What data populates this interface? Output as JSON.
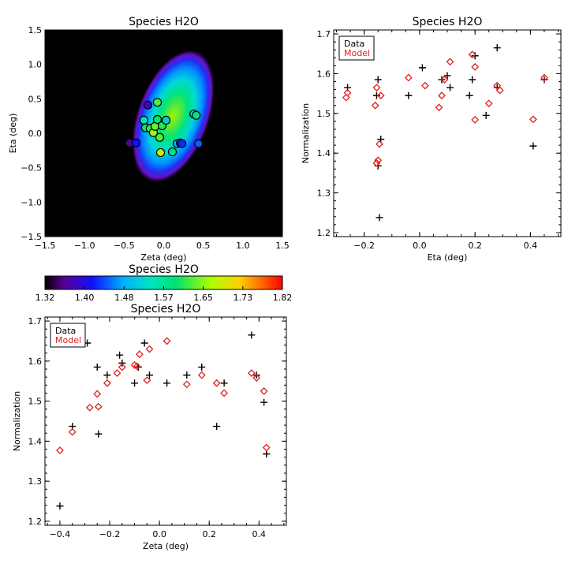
{
  "chart_data": [
    {
      "type": "heatmap",
      "title": "Species H2O",
      "xlabel": "Zeta (deg)",
      "ylabel": "Eta (deg)",
      "xlim": [
        -1.5,
        1.5
      ],
      "ylim": [
        -1.5,
        1.5
      ],
      "xticks": [
        "−1.5",
        "−1.0",
        "−0.5",
        "0.0",
        "0.5",
        "1.0",
        "1.5"
      ],
      "yticks": [
        "−1.5",
        "−1.0",
        "−0.5",
        "0.0",
        "0.5",
        "1.0",
        "1.5"
      ],
      "ellipse": {
        "center": [
          0.12,
          0.25
        ],
        "semi_major": 1.0,
        "semi_minor": 0.45,
        "tilt_deg": 20
      },
      "points": [
        {
          "x": -0.43,
          "y": -0.14,
          "v": 1.37
        },
        {
          "x": -0.35,
          "y": -0.14,
          "v": 1.42
        },
        {
          "x": -0.25,
          "y": 0.19,
          "v": 1.55
        },
        {
          "x": -0.23,
          "y": 0.08,
          "v": 1.6
        },
        {
          "x": -0.2,
          "y": 0.41,
          "v": 1.38
        },
        {
          "x": -0.17,
          "y": 0.07,
          "v": 1.62
        },
        {
          "x": -0.13,
          "y": 0.01,
          "v": 1.66
        },
        {
          "x": -0.11,
          "y": 0.1,
          "v": 1.64
        },
        {
          "x": -0.08,
          "y": 0.2,
          "v": 1.6
        },
        {
          "x": -0.08,
          "y": 0.45,
          "v": 1.63
        },
        {
          "x": -0.05,
          "y": -0.06,
          "v": 1.63
        },
        {
          "x": -0.04,
          "y": -0.28,
          "v": 1.7
        },
        {
          "x": -0.02,
          "y": 0.11,
          "v": 1.61
        },
        {
          "x": 0.03,
          "y": 0.19,
          "v": 1.52
        },
        {
          "x": 0.11,
          "y": -0.27,
          "v": 1.58
        },
        {
          "x": 0.17,
          "y": -0.15,
          "v": 1.49
        },
        {
          "x": 0.21,
          "y": -0.14,
          "v": 1.45
        },
        {
          "x": 0.23,
          "y": -0.15,
          "v": 1.43
        },
        {
          "x": 0.38,
          "y": 0.28,
          "v": 1.59
        },
        {
          "x": 0.41,
          "y": 0.26,
          "v": 1.58
        },
        {
          "x": 0.44,
          "y": -0.15,
          "v": 1.45
        }
      ]
    },
    {
      "type": "scatter",
      "title": "Species H2O",
      "xlabel": "Eta (deg)",
      "ylabel": "Normalization",
      "xlim": [
        -0.31,
        0.51
      ],
      "ylim": [
        1.19,
        1.71
      ],
      "xticks": [
        -0.2,
        0.0,
        0.2,
        0.4
      ],
      "xtick_labels": [
        "−0.2",
        "0.0",
        "0.2",
        "0.4"
      ],
      "yticks": [
        1.2,
        1.3,
        1.4,
        1.5,
        1.6,
        1.7
      ],
      "ytick_labels": [
        "1.2",
        "1.3",
        "1.4",
        "1.5",
        "1.6",
        "1.7"
      ],
      "legend": [
        "Data",
        "Model"
      ],
      "legend_position": "top-left",
      "series": [
        {
          "name": "Data",
          "marker": "plus",
          "color": "#000000",
          "x": [
            -0.26,
            -0.15,
            -0.155,
            -0.15,
            -0.145,
            -0.14,
            -0.04,
            0.01,
            0.08,
            0.1,
            0.11,
            0.18,
            0.19,
            0.2,
            0.24,
            0.28,
            0.28,
            0.41,
            0.45
          ],
          "y": [
            1.565,
            1.585,
            1.545,
            1.368,
            1.238,
            1.435,
            1.545,
            1.615,
            1.585,
            1.595,
            1.565,
            1.545,
            1.585,
            1.645,
            1.495,
            1.665,
            1.565,
            1.418,
            1.585
          ]
        },
        {
          "name": "Model",
          "marker": "diamond",
          "color": "#e0201e",
          "x": [
            -0.265,
            -0.26,
            -0.16,
            -0.155,
            -0.15,
            -0.155,
            -0.145,
            -0.14,
            -0.04,
            0.02,
            0.07,
            0.08,
            0.09,
            0.11,
            0.19,
            0.2,
            0.2,
            0.25,
            0.28,
            0.29,
            0.41,
            0.45
          ],
          "y": [
            1.54,
            1.552,
            1.52,
            1.565,
            1.382,
            1.375,
            1.423,
            1.545,
            1.59,
            1.57,
            1.515,
            1.545,
            1.585,
            1.63,
            1.648,
            1.617,
            1.484,
            1.525,
            1.57,
            1.558,
            1.485,
            1.59
          ]
        }
      ]
    },
    {
      "type": "colorbar",
      "title": "Species H2O",
      "tick_labels": [
        "1.32",
        "1.40",
        "1.48",
        "1.57",
        "1.65",
        "1.73",
        "1.82"
      ],
      "range": [
        1.32,
        1.82
      ]
    },
    {
      "type": "scatter",
      "title": "Species H2O",
      "xlabel": "Zeta (deg)",
      "ylabel": "Normalization",
      "xlim": [
        -0.46,
        0.51
      ],
      "ylim": [
        1.19,
        1.71
      ],
      "xticks": [
        -0.4,
        -0.2,
        0.0,
        0.2,
        0.4
      ],
      "xtick_labels": [
        "−0.4",
        "−0.2",
        "0.0",
        "0.2",
        "0.4"
      ],
      "yticks": [
        1.2,
        1.3,
        1.4,
        1.5,
        1.6,
        1.7
      ],
      "ytick_labels": [
        "1.2",
        "1.3",
        "1.4",
        "1.5",
        "1.6",
        "1.7"
      ],
      "legend": [
        "Data",
        "Model"
      ],
      "legend_position": "top-left",
      "series": [
        {
          "name": "Data",
          "marker": "plus",
          "color": "#000000",
          "x": [
            -0.4,
            -0.35,
            -0.29,
            -0.25,
            -0.245,
            -0.21,
            -0.16,
            -0.15,
            -0.1,
            -0.085,
            -0.06,
            -0.04,
            0.03,
            0.11,
            0.17,
            0.23,
            0.26,
            0.37,
            0.39,
            0.42,
            0.43
          ],
          "y": [
            1.238,
            1.437,
            1.645,
            1.585,
            1.418,
            1.565,
            1.615,
            1.595,
            1.545,
            1.585,
            1.645,
            1.565,
            1.545,
            1.565,
            1.585,
            1.437,
            1.545,
            1.665,
            1.565,
            1.497,
            1.368
          ]
        },
        {
          "name": "Model",
          "marker": "diamond",
          "color": "#e0201e",
          "x": [
            -0.4,
            -0.35,
            -0.28,
            -0.25,
            -0.245,
            -0.21,
            -0.17,
            -0.15,
            -0.1,
            -0.09,
            -0.08,
            -0.05,
            -0.04,
            0.03,
            0.11,
            0.17,
            0.23,
            0.26,
            0.37,
            0.39,
            0.42,
            0.43
          ],
          "y": [
            1.377,
            1.423,
            1.484,
            1.518,
            1.486,
            1.545,
            1.57,
            1.585,
            1.59,
            1.587,
            1.617,
            1.552,
            1.63,
            1.65,
            1.542,
            1.565,
            1.545,
            1.52,
            1.57,
            1.558,
            1.525,
            1.384
          ]
        }
      ]
    }
  ]
}
